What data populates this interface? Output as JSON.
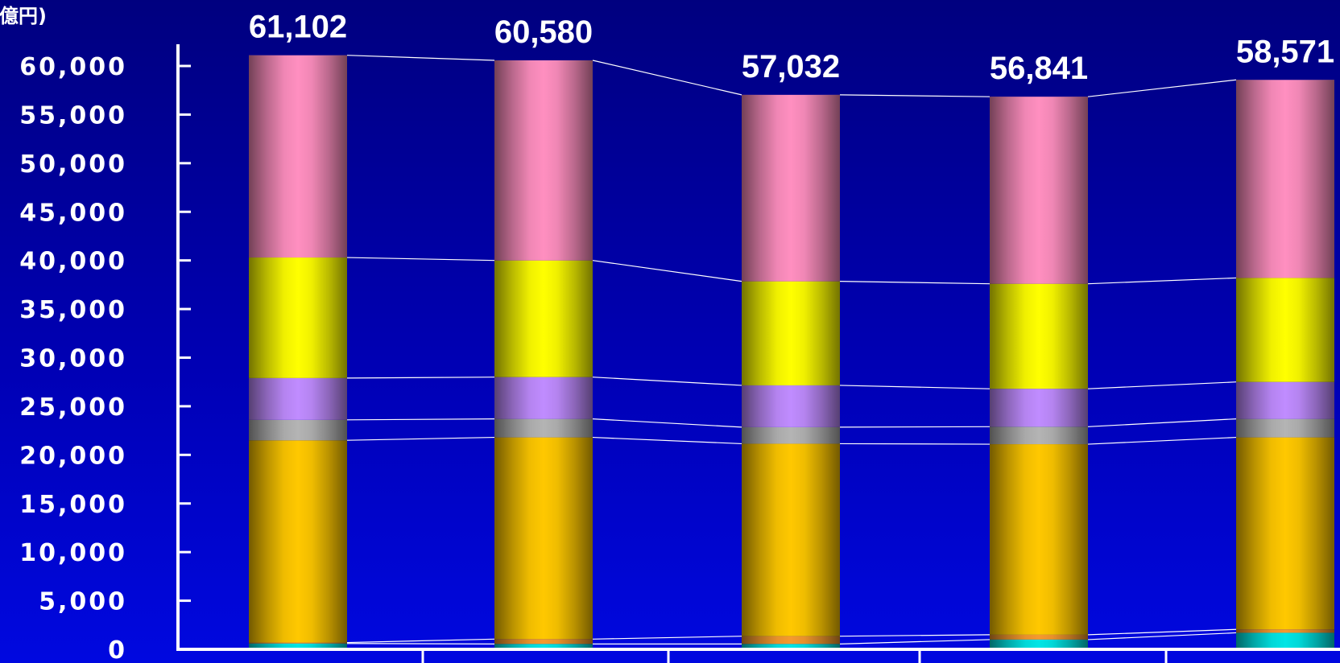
{
  "chart_data": {
    "type": "bar",
    "stacked": true,
    "y_unit_label": "(億円)",
    "ylim": [
      0,
      62000
    ],
    "y_ticks": [
      "0",
      "5,000",
      "10,000",
      "15,000",
      "20,000",
      "25,000",
      "30,000",
      "35,000",
      "40,000",
      "45,000",
      "50,000",
      "55,000",
      "60,000"
    ],
    "y_tick_values": [
      0,
      5000,
      10000,
      15000,
      20000,
      25000,
      30000,
      35000,
      40000,
      45000,
      50000,
      55000,
      60000
    ],
    "categories": [
      "",
      "",
      "",
      "",
      ""
    ],
    "totals": [
      61102,
      60580,
      57032,
      56841,
      58571
    ],
    "total_labels": [
      "61,102",
      "60,580",
      "57,032",
      "56,841",
      "58,571"
    ],
    "series": [
      {
        "color": "#00e5e5",
        "values": [
          600,
          550,
          550,
          1000,
          1700
        ]
      },
      {
        "color": "#f59a2e",
        "values": [
          100,
          500,
          800,
          500,
          350
        ]
      },
      {
        "color": "#ffc800",
        "values": [
          20800,
          20750,
          19800,
          19600,
          19750
        ]
      },
      {
        "color": "#b4b4b4",
        "values": [
          2100,
          1900,
          1700,
          1800,
          1900
        ]
      },
      {
        "color": "#c08cff",
        "values": [
          4300,
          4300,
          4300,
          3900,
          3800
        ]
      },
      {
        "color": "#ffff00",
        "values": [
          12400,
          12000,
          10700,
          10800,
          10700
        ]
      },
      {
        "color": "#ff8fc0",
        "values": [
          20802,
          20580,
          19182,
          19241,
          20371
        ]
      }
    ],
    "connector_lines": true,
    "grid": false,
    "legend": "none"
  }
}
